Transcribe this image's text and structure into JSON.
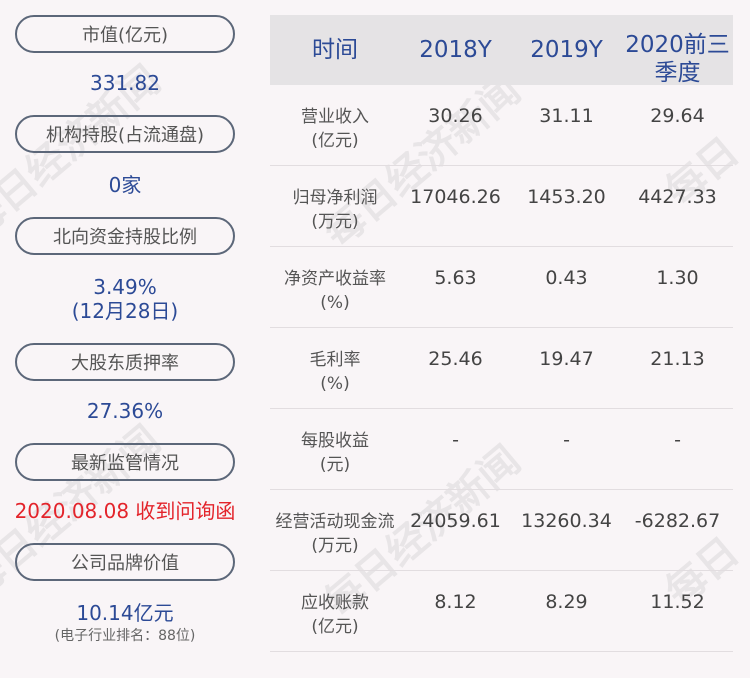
{
  "left": [
    {
      "label": "市值(亿元)",
      "value": "331.82"
    },
    {
      "label": "机构持股(占流通盘)",
      "value": "0家"
    },
    {
      "label": "北向资金持股比例",
      "value": "3.49%",
      "value2": "(12月28日)"
    },
    {
      "label": "大股东质押率",
      "value": "27.36%"
    },
    {
      "label": "最新监管情况",
      "value": "2020.08.08 收到问询函",
      "value_color": "#e3242b"
    },
    {
      "label": "公司品牌价值",
      "value": "10.14亿元",
      "note": "(电子行业排名：88位)"
    }
  ],
  "table": {
    "headers": [
      "时间",
      "2018Y",
      "2019Y",
      "2020前三季度"
    ],
    "rows": [
      {
        "label": "营业收入",
        "unit": "(亿元)",
        "values": [
          "30.26",
          "31.11",
          "29.64"
        ]
      },
      {
        "label": "归母净利润",
        "unit": "(万元)",
        "values": [
          "17046.26",
          "1453.20",
          "4427.33"
        ]
      },
      {
        "label": "净资产收益率",
        "unit": "(%)",
        "values": [
          "5.63",
          "0.43",
          "1.30"
        ]
      },
      {
        "label": "毛利率",
        "unit": "(%)",
        "values": [
          "25.46",
          "19.47",
          "21.13"
        ]
      },
      {
        "label": "每股收益",
        "unit": "(元)",
        "values": [
          "-",
          "-",
          "-"
        ]
      },
      {
        "label": "经营活动现金流",
        "unit": "(万元)",
        "values": [
          "24059.61",
          "13260.34",
          "-6282.67"
        ]
      },
      {
        "label": "应收账款",
        "unit": "(亿元)",
        "values": [
          "8.12",
          "8.29",
          "11.52"
        ]
      }
    ]
  },
  "watermark": "每日经济新闻",
  "colors": {
    "accent": "#2c4a96",
    "alert": "#e3242b",
    "header_bg": "#e5e3e5",
    "background": "#f9f5f7"
  }
}
